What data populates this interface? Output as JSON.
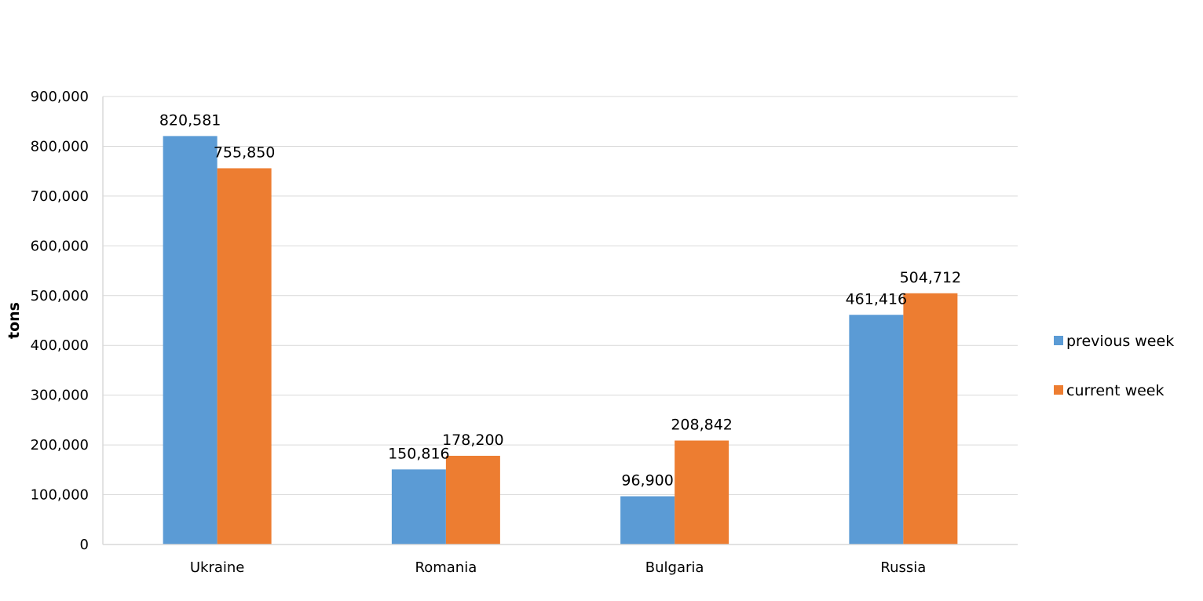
{
  "chart_data": {
    "type": "bar",
    "title": "",
    "xlabel": "",
    "ylabel": "tons",
    "ylim": [
      0,
      900000
    ],
    "ytick_step": 100000,
    "ytick_labels": [
      "0",
      "100,000",
      "200,000",
      "300,000",
      "400,000",
      "500,000",
      "600,000",
      "700,000",
      "800,000",
      "900,000"
    ],
    "grid": true,
    "legend_position": "right",
    "categories": [
      "Ukraine",
      "Romania",
      "Bulgaria",
      "Russia"
    ],
    "series": [
      {
        "name": "previous week",
        "color": "#5b9bd5",
        "values": [
          820581,
          150816,
          96900,
          461416
        ],
        "labels": [
          "820,581",
          "150,816",
          "96,900",
          "461,416"
        ]
      },
      {
        "name": "current week",
        "color": "#ed7d31",
        "values": [
          755850,
          178200,
          208842,
          504712
        ],
        "labels": [
          "755,850",
          "178,200",
          "208,842",
          "504,712"
        ]
      }
    ]
  }
}
